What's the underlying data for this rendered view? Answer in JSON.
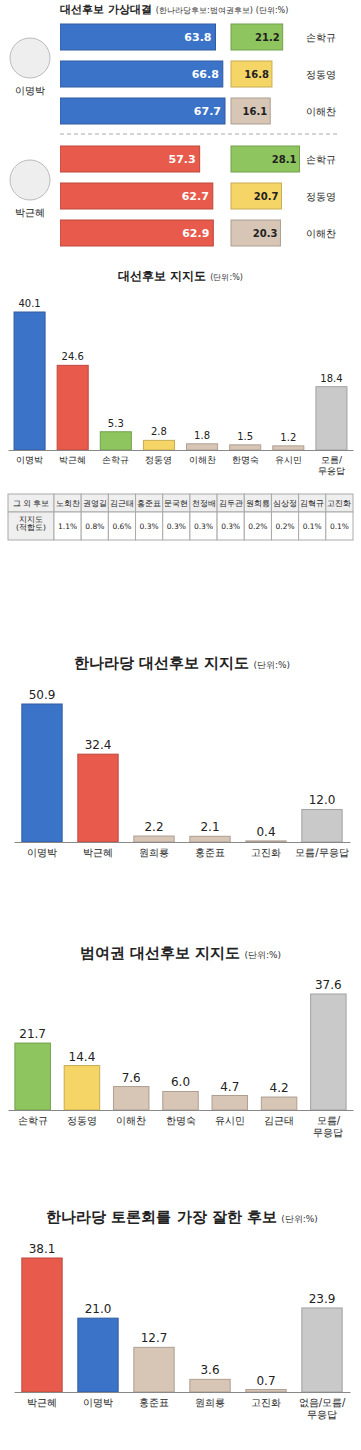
{
  "chart_data": [
    {
      "type": "bar",
      "orientation": "horizontal",
      "title": "대선후보 가상대결",
      "subtitle": "(한나라당후보:범여권후보)",
      "unit": "(단위:%)",
      "data_labels": true,
      "panels": [
        {
          "candidate": "이명박",
          "color": "#3b73c8",
          "opponents": [
            "손학규",
            "정동영",
            "이해찬"
          ],
          "values": [
            63.8,
            66.8,
            67.7
          ],
          "opponent_values": [
            21.2,
            16.8,
            16.1
          ],
          "opponent_colors": [
            "#8fc55e",
            "#f6d567",
            "#d7c5b5"
          ]
        },
        {
          "candidate": "박근혜",
          "color": "#e85a4b",
          "opponents": [
            "손학규",
            "정동영",
            "이해찬"
          ],
          "values": [
            57.3,
            62.7,
            62.9
          ],
          "opponent_values": [
            28.1,
            20.7,
            20.3
          ],
          "opponent_colors": [
            "#8fc55e",
            "#f6d567",
            "#d7c5b5"
          ]
        }
      ]
    },
    {
      "type": "bar",
      "title": "대선후보 지지도",
      "unit": "(단위:%)",
      "data_labels": true,
      "tick_labels": "x",
      "categories": [
        "이명박",
        "박근혜",
        "손학규",
        "정동영",
        "이해찬",
        "한명숙",
        "유시민",
        "모름/무응답"
      ],
      "values": [
        40.1,
        24.6,
        5.3,
        2.8,
        1.8,
        1.5,
        1.2,
        18.4
      ],
      "value_labels": [
        "40.1",
        "24.6",
        "5.3",
        "2.8",
        "1.8",
        "1.5",
        "1.2",
        "18.4"
      ],
      "colors": [
        "#3b73c8",
        "#e85a4b",
        "#8fc55e",
        "#f6d567",
        "#d7c5b5",
        "#d7c5b5",
        "#d7c5b5",
        "#c9c9c9"
      ],
      "table": {
        "header": [
          "그 외 후보",
          "노회찬",
          "권영길",
          "김근태",
          "홍준표",
          "문국현",
          "천정배",
          "김두관",
          "원희룡",
          "심상정",
          "김혁규",
          "고진화"
        ],
        "rows": [
          [
            "지지도(적합도)",
            "1.1%",
            "0.8%",
            "0.6%",
            "0.3%",
            "0.3%",
            "0.3%",
            "0.3%",
            "0.2%",
            "0.2%",
            "0.1%",
            "0.1%"
          ]
        ]
      }
    },
    {
      "type": "bar",
      "title": "한나라당 대선후보 지지도",
      "unit": "(단위:%)",
      "data_labels": true,
      "tick_labels": "x",
      "categories": [
        "이명박",
        "박근혜",
        "원희룡",
        "홍준표",
        "고진화",
        "모름/무응답"
      ],
      "values": [
        50.9,
        32.4,
        2.2,
        2.1,
        0.4,
        12.0
      ],
      "value_labels": [
        "50.9",
        "32.4",
        "2.2",
        "2.1",
        "0.4",
        "12.0"
      ],
      "colors": [
        "#3b73c8",
        "#e85a4b",
        "#d7c5b5",
        "#d7c5b5",
        "#d7c5b5",
        "#c9c9c9"
      ]
    },
    {
      "type": "bar",
      "title": "범여권 대선후보 지지도",
      "unit": "(단위:%)",
      "data_labels": true,
      "tick_labels": "x",
      "categories": [
        "손학규",
        "정동영",
        "이해찬",
        "한명숙",
        "유시민",
        "김근태",
        "모름/무응답"
      ],
      "values": [
        21.7,
        14.4,
        7.6,
        6.0,
        4.7,
        4.2,
        37.6
      ],
      "value_labels": [
        "21.7",
        "14.4",
        "7.6",
        "6.0",
        "4.7",
        "4.2",
        "37.6"
      ],
      "colors": [
        "#8fc55e",
        "#f6d567",
        "#d7c5b5",
        "#d7c5b5",
        "#d7c5b5",
        "#d7c5b5",
        "#c9c9c9"
      ]
    },
    {
      "type": "bar",
      "title": "한나라당 토론회를 가장 잘한 후보",
      "unit": "(단위:%)",
      "data_labels": true,
      "tick_labels": "x",
      "categories": [
        "박근혜",
        "이명박",
        "홍준표",
        "원희룡",
        "고진화",
        "없음/모름/무응답"
      ],
      "values": [
        38.1,
        21.0,
        12.7,
        3.6,
        0.7,
        23.9
      ],
      "value_labels": [
        "38.1",
        "21.0",
        "12.7",
        "3.6",
        "0.7",
        "23.9"
      ],
      "colors": [
        "#e85a4b",
        "#3b73c8",
        "#d7c5b5",
        "#d7c5b5",
        "#d7c5b5",
        "#c9c9c9"
      ]
    }
  ]
}
